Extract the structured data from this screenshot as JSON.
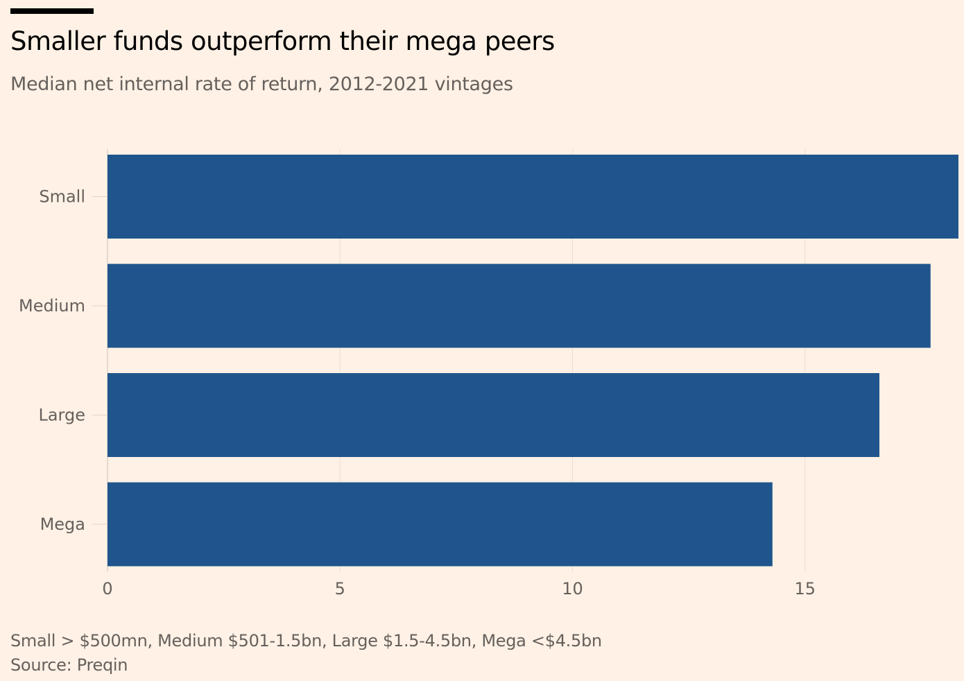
{
  "title": "Smaller funds outperform their mega peers",
  "subtitle": "Median net internal rate of return, 2012-2021 vintages",
  "footnote": "Small > $500mn, Medium $501-1.5bn, Large $1.5-4.5bn, Mega <$4.5bn",
  "source": "Source: Preqin",
  "colors": {
    "bar": "#1f558c",
    "background": "#fff1e5",
    "grid": "#e9ded5"
  },
  "chart_data": {
    "type": "bar",
    "orientation": "horizontal",
    "title": "Smaller funds outperform their mega peers",
    "subtitle": "Median net internal rate of return, 2012-2021 vintages",
    "categories": [
      "Small",
      "Medium",
      "Large",
      "Mega"
    ],
    "values": [
      18.3,
      17.7,
      16.6,
      14.3
    ],
    "xlabel": "",
    "ylabel": "",
    "xlim": [
      0,
      18.3
    ],
    "xticks": [
      0,
      5,
      10,
      15
    ],
    "xtick_labels": [
      "0",
      "5",
      "10",
      "15"
    ],
    "grid": true
  }
}
